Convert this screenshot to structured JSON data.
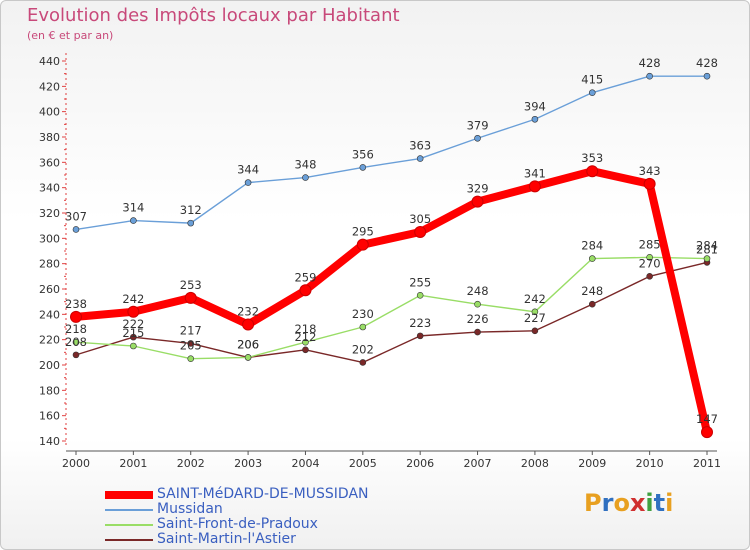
{
  "chart_data": {
    "type": "line",
    "title": "Evolution des Impôts locaux par Habitant",
    "subtitle": "(en € et par an)",
    "xlabel": "",
    "ylabel": "",
    "ylim": [
      140,
      440
    ],
    "ytick_step": 20,
    "x": [
      "2000",
      "2001",
      "2002",
      "2003",
      "2004",
      "2005",
      "2006",
      "2007",
      "2008",
      "2009",
      "2010",
      "2011"
    ],
    "series": [
      {
        "name": "SAINT-MéDARD-DE-MUSSIDAN",
        "color": "#ff0000",
        "values": [
          238,
          242,
          253,
          232,
          259,
          295,
          305,
          329,
          341,
          353,
          343,
          147
        ]
      },
      {
        "name": "Mussidan",
        "color": "#6a9fd8",
        "values": [
          307,
          314,
          312,
          344,
          348,
          356,
          363,
          379,
          394,
          415,
          428,
          428
        ]
      },
      {
        "name": "Saint-Front-de-Pradoux",
        "color": "#99dd66",
        "values": [
          218,
          215,
          205,
          206,
          218,
          230,
          255,
          248,
          242,
          284,
          285,
          284
        ]
      },
      {
        "name": "Saint-Martin-l'Astier",
        "color": "#7a2828",
        "values": [
          208,
          222,
          217,
          206,
          212,
          202,
          223,
          226,
          227,
          248,
          270,
          281
        ]
      }
    ],
    "grid": false,
    "legend_position": "bottom-left"
  },
  "logo": {
    "text": "Proxiti",
    "letters": [
      "P",
      "r",
      "o",
      "x",
      "i",
      "t",
      "i"
    ],
    "colors": [
      "#e8a020",
      "#3070c0",
      "#e8a020",
      "#d03030",
      "#40a040",
      "#3070c0",
      "#e8a020"
    ]
  }
}
